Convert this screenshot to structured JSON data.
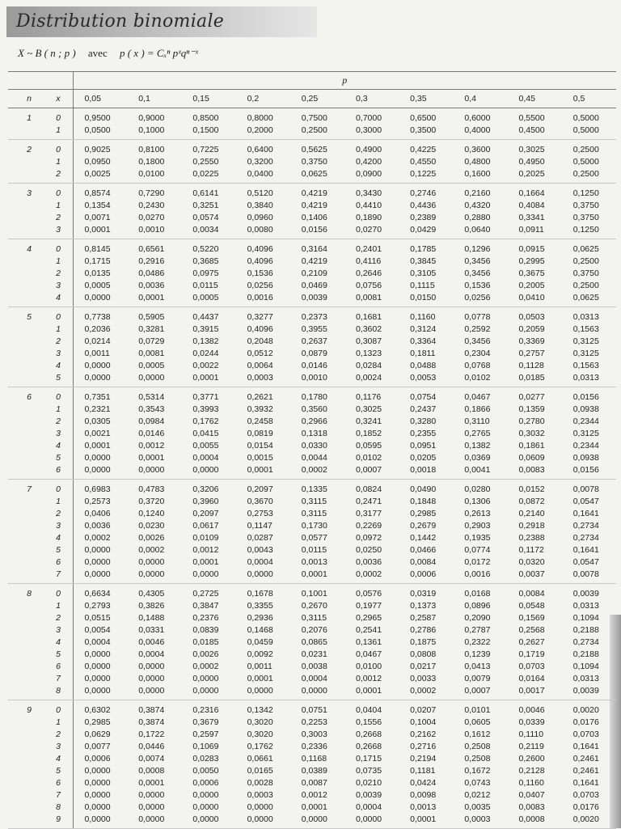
{
  "title": "Distribution binomiale",
  "formula": {
    "lhs": "X ~ B ( n ; p )",
    "avec": "avec",
    "rhs": "p ( x ) = Cₓⁿ pˣqⁿ⁻ˣ"
  },
  "table": {
    "p_label": "p",
    "n_label": "n",
    "x_label": "x",
    "columns": [
      "0,05",
      "0,1",
      "0,15",
      "0,2",
      "0,25",
      "0,3",
      "0,35",
      "0,4",
      "0,45",
      "0,5"
    ],
    "groups": [
      {
        "n": "1",
        "rows": [
          [
            "0",
            "0,9500",
            "0,9000",
            "0,8500",
            "0,8000",
            "0,7500",
            "0,7000",
            "0,6500",
            "0,6000",
            "0,5500",
            "0,5000"
          ],
          [
            "1",
            "0,0500",
            "0,1000",
            "0,1500",
            "0,2000",
            "0,2500",
            "0,3000",
            "0,3500",
            "0,4000",
            "0,4500",
            "0,5000"
          ]
        ]
      },
      {
        "n": "2",
        "rows": [
          [
            "0",
            "0,9025",
            "0,8100",
            "0,7225",
            "0,6400",
            "0,5625",
            "0,4900",
            "0,4225",
            "0,3600",
            "0,3025",
            "0,2500"
          ],
          [
            "1",
            "0,0950",
            "0,1800",
            "0,2550",
            "0,3200",
            "0,3750",
            "0,4200",
            "0,4550",
            "0,4800",
            "0,4950",
            "0,5000"
          ],
          [
            "2",
            "0,0025",
            "0,0100",
            "0,0225",
            "0,0400",
            "0,0625",
            "0,0900",
            "0,1225",
            "0,1600",
            "0,2025",
            "0,2500"
          ]
        ]
      },
      {
        "n": "3",
        "rows": [
          [
            "0",
            "0,8574",
            "0,7290",
            "0,6141",
            "0,5120",
            "0,4219",
            "0,3430",
            "0,2746",
            "0,2160",
            "0,1664",
            "0,1250"
          ],
          [
            "1",
            "0,1354",
            "0,2430",
            "0,3251",
            "0,3840",
            "0,4219",
            "0,4410",
            "0,4436",
            "0,4320",
            "0,4084",
            "0,3750"
          ],
          [
            "2",
            "0,0071",
            "0,0270",
            "0,0574",
            "0,0960",
            "0,1406",
            "0,1890",
            "0,2389",
            "0,2880",
            "0,3341",
            "0,3750"
          ],
          [
            "3",
            "0,0001",
            "0,0010",
            "0,0034",
            "0,0080",
            "0,0156",
            "0,0270",
            "0,0429",
            "0,0640",
            "0,0911",
            "0,1250"
          ]
        ]
      },
      {
        "n": "4",
        "rows": [
          [
            "0",
            "0,8145",
            "0,6561",
            "0,5220",
            "0,4096",
            "0,3164",
            "0,2401",
            "0,1785",
            "0,1296",
            "0,0915",
            "0,0625"
          ],
          [
            "1",
            "0,1715",
            "0,2916",
            "0,3685",
            "0,4096",
            "0,4219",
            "0,4116",
            "0,3845",
            "0,3456",
            "0,2995",
            "0,2500"
          ],
          [
            "2",
            "0,0135",
            "0,0486",
            "0,0975",
            "0,1536",
            "0,2109",
            "0,2646",
            "0,3105",
            "0,3456",
            "0,3675",
            "0,3750"
          ],
          [
            "3",
            "0,0005",
            "0,0036",
            "0,0115",
            "0,0256",
            "0,0469",
            "0,0756",
            "0,1115",
            "0,1536",
            "0,2005",
            "0,2500"
          ],
          [
            "4",
            "0,0000",
            "0,0001",
            "0,0005",
            "0,0016",
            "0,0039",
            "0,0081",
            "0,0150",
            "0,0256",
            "0,0410",
            "0,0625"
          ]
        ]
      },
      {
        "n": "5",
        "rows": [
          [
            "0",
            "0,7738",
            "0,5905",
            "0,4437",
            "0,3277",
            "0,2373",
            "0,1681",
            "0,1160",
            "0,0778",
            "0,0503",
            "0,0313"
          ],
          [
            "1",
            "0,2036",
            "0,3281",
            "0,3915",
            "0,4096",
            "0,3955",
            "0,3602",
            "0,3124",
            "0,2592",
            "0,2059",
            "0,1563"
          ],
          [
            "2",
            "0,0214",
            "0,0729",
            "0,1382",
            "0,2048",
            "0,2637",
            "0,3087",
            "0,3364",
            "0,3456",
            "0,3369",
            "0,3125"
          ],
          [
            "3",
            "0,0011",
            "0,0081",
            "0,0244",
            "0,0512",
            "0,0879",
            "0,1323",
            "0,1811",
            "0,2304",
            "0,2757",
            "0,3125"
          ],
          [
            "4",
            "0,0000",
            "0,0005",
            "0,0022",
            "0,0064",
            "0,0146",
            "0,0284",
            "0,0488",
            "0,0768",
            "0,1128",
            "0,1563"
          ],
          [
            "5",
            "0,0000",
            "0,0000",
            "0,0001",
            "0,0003",
            "0,0010",
            "0,0024",
            "0,0053",
            "0,0102",
            "0,0185",
            "0,0313"
          ]
        ]
      },
      {
        "n": "6",
        "rows": [
          [
            "0",
            "0,7351",
            "0,5314",
            "0,3771",
            "0,2621",
            "0,1780",
            "0,1176",
            "0,0754",
            "0,0467",
            "0,0277",
            "0,0156"
          ],
          [
            "1",
            "0,2321",
            "0,3543",
            "0,3993",
            "0,3932",
            "0,3560",
            "0,3025",
            "0,2437",
            "0,1866",
            "0,1359",
            "0,0938"
          ],
          [
            "2",
            "0,0305",
            "0,0984",
            "0,1762",
            "0,2458",
            "0,2966",
            "0,3241",
            "0,3280",
            "0,3110",
            "0,2780",
            "0,2344"
          ],
          [
            "3",
            "0,0021",
            "0,0146",
            "0,0415",
            "0,0819",
            "0,1318",
            "0,1852",
            "0,2355",
            "0,2765",
            "0,3032",
            "0,3125"
          ],
          [
            "4",
            "0,0001",
            "0,0012",
            "0,0055",
            "0,0154",
            "0,0330",
            "0,0595",
            "0,0951",
            "0,1382",
            "0,1861",
            "0,2344"
          ],
          [
            "5",
            "0,0000",
            "0,0001",
            "0,0004",
            "0,0015",
            "0,0044",
            "0,0102",
            "0,0205",
            "0,0369",
            "0,0609",
            "0,0938"
          ],
          [
            "6",
            "0,0000",
            "0,0000",
            "0,0000",
            "0,0001",
            "0,0002",
            "0,0007",
            "0,0018",
            "0,0041",
            "0,0083",
            "0,0156"
          ]
        ]
      },
      {
        "n": "7",
        "rows": [
          [
            "0",
            "0,6983",
            "0,4783",
            "0,3206",
            "0,2097",
            "0,1335",
            "0,0824",
            "0,0490",
            "0,0280",
            "0,0152",
            "0,0078"
          ],
          [
            "1",
            "0,2573",
            "0,3720",
            "0,3960",
            "0,3670",
            "0,3115",
            "0,2471",
            "0,1848",
            "0,1306",
            "0,0872",
            "0,0547"
          ],
          [
            "2",
            "0,0406",
            "0,1240",
            "0,2097",
            "0,2753",
            "0,3115",
            "0,3177",
            "0,2985",
            "0,2613",
            "0,2140",
            "0,1641"
          ],
          [
            "3",
            "0,0036",
            "0,0230",
            "0,0617",
            "0,1147",
            "0,1730",
            "0,2269",
            "0,2679",
            "0,2903",
            "0,2918",
            "0,2734"
          ],
          [
            "4",
            "0,0002",
            "0,0026",
            "0,0109",
            "0,0287",
            "0,0577",
            "0,0972",
            "0,1442",
            "0,1935",
            "0,2388",
            "0,2734"
          ],
          [
            "5",
            "0,0000",
            "0,0002",
            "0,0012",
            "0,0043",
            "0,0115",
            "0,0250",
            "0,0466",
            "0,0774",
            "0,1172",
            "0,1641"
          ],
          [
            "6",
            "0,0000",
            "0,0000",
            "0,0001",
            "0,0004",
            "0,0013",
            "0,0036",
            "0,0084",
            "0,0172",
            "0,0320",
            "0,0547"
          ],
          [
            "7",
            "0,0000",
            "0,0000",
            "0,0000",
            "0,0000",
            "0,0001",
            "0,0002",
            "0,0006",
            "0,0016",
            "0,0037",
            "0,0078"
          ]
        ]
      },
      {
        "n": "8",
        "rows": [
          [
            "0",
            "0,6634",
            "0,4305",
            "0,2725",
            "0,1678",
            "0,1001",
            "0,0576",
            "0,0319",
            "0,0168",
            "0,0084",
            "0,0039"
          ],
          [
            "1",
            "0,2793",
            "0,3826",
            "0,3847",
            "0,3355",
            "0,2670",
            "0,1977",
            "0,1373",
            "0,0896",
            "0,0548",
            "0,0313"
          ],
          [
            "2",
            "0,0515",
            "0,1488",
            "0,2376",
            "0,2936",
            "0,3115",
            "0,2965",
            "0,2587",
            "0,2090",
            "0,1569",
            "0,1094"
          ],
          [
            "3",
            "0,0054",
            "0,0331",
            "0,0839",
            "0,1468",
            "0,2076",
            "0,2541",
            "0,2786",
            "0,2787",
            "0,2568",
            "0,2188"
          ],
          [
            "4",
            "0,0004",
            "0,0046",
            "0,0185",
            "0,0459",
            "0,0865",
            "0,1361",
            "0,1875",
            "0,2322",
            "0,2627",
            "0,2734"
          ],
          [
            "5",
            "0,0000",
            "0,0004",
            "0,0026",
            "0,0092",
            "0,0231",
            "0,0467",
            "0,0808",
            "0,1239",
            "0,1719",
            "0,2188"
          ],
          [
            "6",
            "0,0000",
            "0,0000",
            "0,0002",
            "0,0011",
            "0,0038",
            "0,0100",
            "0,0217",
            "0,0413",
            "0,0703",
            "0,1094"
          ],
          [
            "7",
            "0,0000",
            "0,0000",
            "0,0000",
            "0,0001",
            "0,0004",
            "0,0012",
            "0,0033",
            "0,0079",
            "0,0164",
            "0,0313"
          ],
          [
            "8",
            "0,0000",
            "0,0000",
            "0,0000",
            "0,0000",
            "0,0000",
            "0,0001",
            "0,0002",
            "0,0007",
            "0,0017",
            "0,0039"
          ]
        ]
      },
      {
        "n": "9",
        "rows": [
          [
            "0",
            "0,6302",
            "0,3874",
            "0,2316",
            "0,1342",
            "0,0751",
            "0,0404",
            "0,0207",
            "0,0101",
            "0,0046",
            "0,0020"
          ],
          [
            "1",
            "0,2985",
            "0,3874",
            "0,3679",
            "0,3020",
            "0,2253",
            "0,1556",
            "0,1004",
            "0,0605",
            "0,0339",
            "0,0176"
          ],
          [
            "2",
            "0,0629",
            "0,1722",
            "0,2597",
            "0,3020",
            "0,3003",
            "0,2668",
            "0,2162",
            "0,1612",
            "0,1110",
            "0,0703"
          ],
          [
            "3",
            "0,0077",
            "0,0446",
            "0,1069",
            "0,1762",
            "0,2336",
            "0,2668",
            "0,2716",
            "0,2508",
            "0,2119",
            "0,1641"
          ],
          [
            "4",
            "0,0006",
            "0,0074",
            "0,0283",
            "0,0661",
            "0,1168",
            "0,1715",
            "0,2194",
            "0,2508",
            "0,2600",
            "0,2461"
          ],
          [
            "5",
            "0,0000",
            "0,0008",
            "0,0050",
            "0,0165",
            "0,0389",
            "0,0735",
            "0,1181",
            "0,1672",
            "0,2128",
            "0,2461"
          ],
          [
            "6",
            "0,0000",
            "0,0001",
            "0,0006",
            "0,0028",
            "0,0087",
            "0,0210",
            "0,0424",
            "0,0743",
            "0,1160",
            "0,1641"
          ],
          [
            "7",
            "0,0000",
            "0,0000",
            "0,0000",
            "0,0003",
            "0,0012",
            "0,0039",
            "0,0098",
            "0,0212",
            "0,0407",
            "0,0703"
          ],
          [
            "8",
            "0,0000",
            "0,0000",
            "0,0000",
            "0,0000",
            "0,0001",
            "0,0004",
            "0,0013",
            "0,0035",
            "0,0083",
            "0,0176"
          ],
          [
            "9",
            "0,0000",
            "0,0000",
            "0,0000",
            "0,0000",
            "0,0000",
            "0,0000",
            "0,0001",
            "0,0003",
            "0,0008",
            "0,0020"
          ]
        ]
      }
    ]
  }
}
